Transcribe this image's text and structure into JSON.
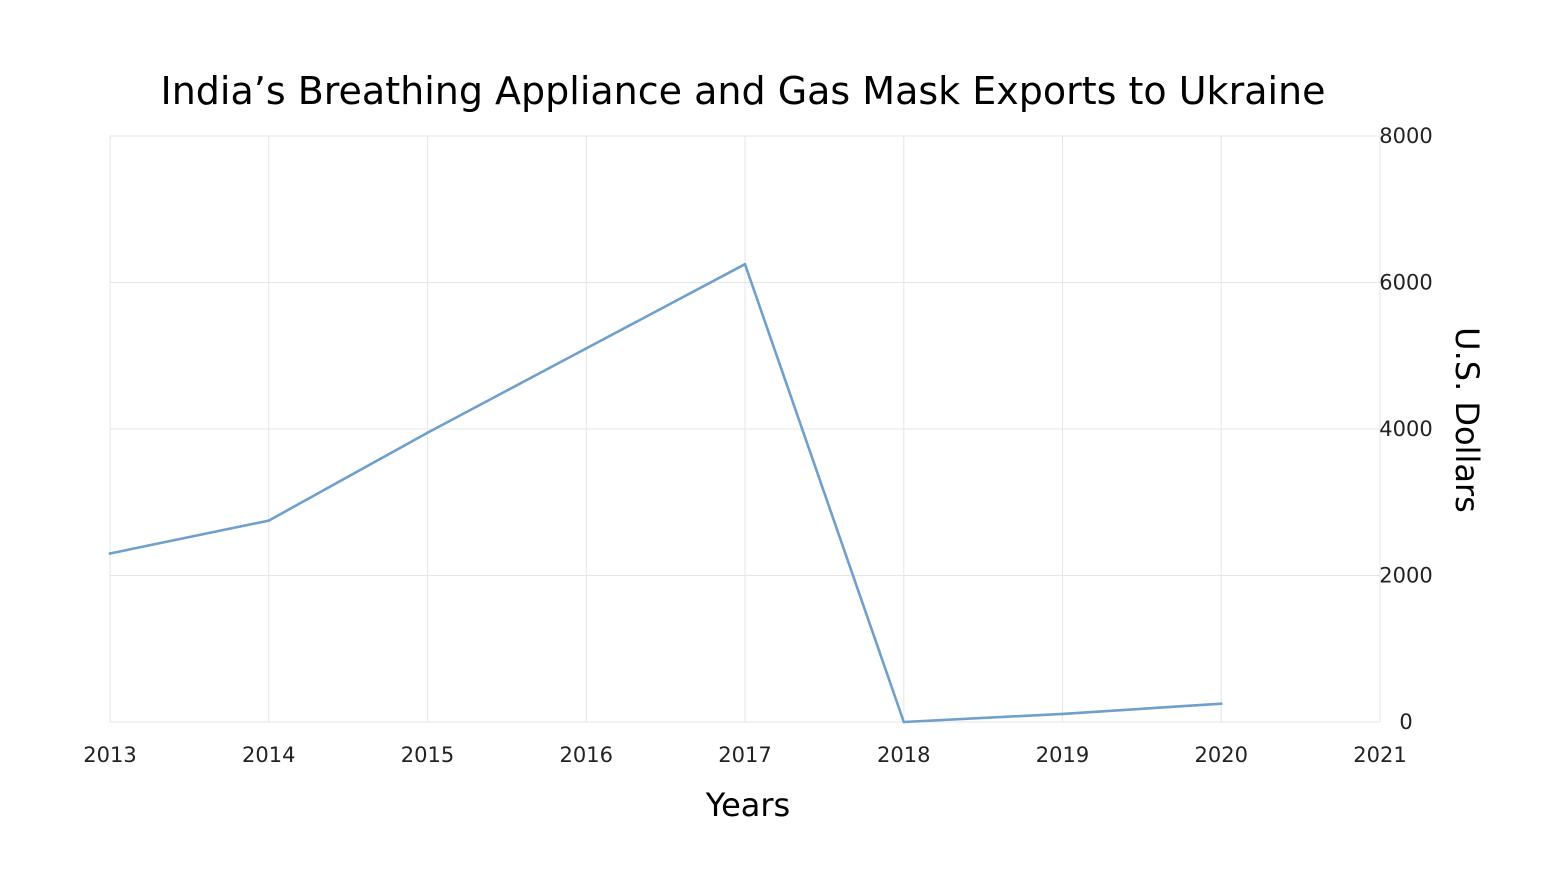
{
  "chart_data": {
    "type": "line",
    "title": "India’s Breathing Appliance and Gas Mask Exports to Ukraine",
    "xlabel": "Years",
    "ylabel": "U.S. Dollars",
    "x_ticks": [
      "2013",
      "2014",
      "2015",
      "2016",
      "2017",
      "2018",
      "2019",
      "2020",
      "2021"
    ],
    "y_ticks": [
      "0",
      "2000",
      "4000",
      "6000",
      "8000"
    ],
    "xlim": [
      2013,
      2021
    ],
    "ylim": [
      0,
      8000
    ],
    "y_axis_side": "right",
    "grid": true,
    "legend": "none",
    "series": [
      {
        "color": "#6f9fcb",
        "x": [
          2013,
          2014,
          2015,
          2016,
          2017,
          2018,
          2019,
          2020
        ],
        "values": [
          2300,
          2750,
          3950,
          5100,
          6250,
          0,
          110,
          250
        ]
      }
    ]
  }
}
